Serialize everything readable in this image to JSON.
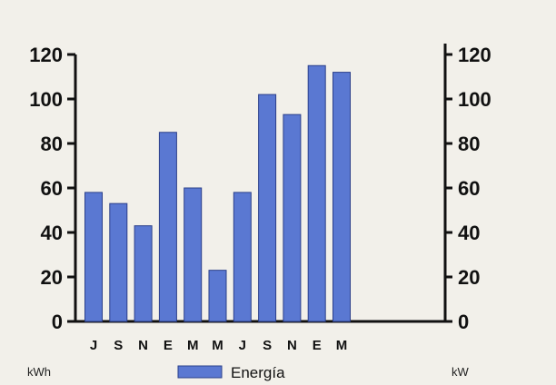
{
  "chart_data": {
    "type": "bar",
    "categories": [
      "J",
      "S",
      "N",
      "E",
      "M",
      "M",
      "J",
      "S",
      "N",
      "E",
      "M"
    ],
    "series": [
      {
        "name": "Energía",
        "values": [
          58,
          53,
          43,
          85,
          60,
          23,
          58,
          102,
          93,
          115,
          112
        ]
      }
    ],
    "ylim": [
      0,
      120
    ],
    "yticks": [
      0,
      20,
      40,
      60,
      80,
      100,
      120
    ],
    "y2lim": [
      0,
      120
    ],
    "y2ticks": [
      0,
      20,
      40,
      60,
      80,
      100,
      120
    ],
    "ylabel": "kWh",
    "y2label": "kW",
    "legend_placement": "bottom",
    "grid": false,
    "bar_color": "#5a78d2",
    "bar_edge_color": "#2b3f8a"
  }
}
